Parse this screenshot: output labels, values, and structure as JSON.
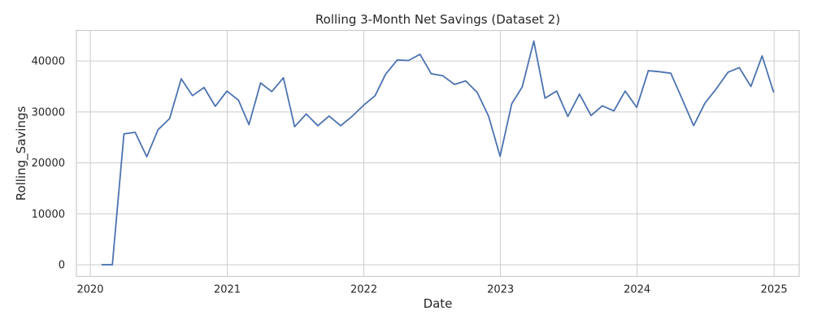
{
  "chart_data": {
    "type": "line",
    "title": "Rolling 3-Month Net Savings (Dataset 2)",
    "xlabel": "Date",
    "ylabel": "Rolling_Savings",
    "xlim": [
      "2019-11-25",
      "2025-03-09"
    ],
    "ylim": [
      -2300,
      46000
    ],
    "x_ticks": [
      {
        "value": "2020-01-01",
        "label": "2020"
      },
      {
        "value": "2021-01-01",
        "label": "2021"
      },
      {
        "value": "2022-01-01",
        "label": "2022"
      },
      {
        "value": "2023-01-01",
        "label": "2023"
      },
      {
        "value": "2024-01-01",
        "label": "2024"
      },
      {
        "value": "2025-01-01",
        "label": "2025"
      }
    ],
    "y_ticks": [
      {
        "value": 0,
        "label": "0"
      },
      {
        "value": 10000,
        "label": "10000"
      },
      {
        "value": 20000,
        "label": "20000"
      },
      {
        "value": 30000,
        "label": "30000"
      },
      {
        "value": 40000,
        "label": "40000"
      }
    ],
    "grid": true,
    "legend": "none",
    "series": [
      {
        "color": "#4c72b0",
        "x": [
          "2020-01-31",
          "2020-02-29",
          "2020-03-31",
          "2020-04-30",
          "2020-05-31",
          "2020-06-30",
          "2020-07-31",
          "2020-08-31",
          "2020-09-30",
          "2020-10-31",
          "2020-11-30",
          "2020-12-31",
          "2021-01-31",
          "2021-02-28",
          "2021-03-31",
          "2021-04-30",
          "2021-05-31",
          "2021-06-30",
          "2021-07-31",
          "2021-08-31",
          "2021-09-30",
          "2021-10-31",
          "2021-11-30",
          "2021-12-31",
          "2022-01-31",
          "2022-02-28",
          "2022-03-31",
          "2022-04-30",
          "2022-05-31",
          "2022-06-30",
          "2022-07-31",
          "2022-08-31",
          "2022-09-30",
          "2022-10-31",
          "2022-11-30",
          "2022-12-31",
          "2023-01-31",
          "2023-02-28",
          "2023-03-31",
          "2023-04-30",
          "2023-05-31",
          "2023-06-30",
          "2023-07-31",
          "2023-08-31",
          "2023-09-30",
          "2023-10-31",
          "2023-11-30",
          "2023-12-31",
          "2024-01-31",
          "2024-02-29",
          "2024-03-31",
          "2024-04-30",
          "2024-05-31",
          "2024-06-30",
          "2024-07-31",
          "2024-08-31",
          "2024-09-30",
          "2024-10-31",
          "2024-11-30",
          "2024-12-31"
        ],
        "y": [
          0,
          0,
          25700,
          26000,
          21200,
          26500,
          28700,
          36500,
          33200,
          34800,
          31100,
          34100,
          32300,
          27500,
          35700,
          34000,
          36700,
          27100,
          29600,
          27300,
          29200,
          27300,
          29100,
          31300,
          33200,
          37400,
          40200,
          40100,
          41300,
          37500,
          37100,
          35400,
          36100,
          33800,
          29200,
          21300,
          31600,
          34900,
          43900,
          32700,
          34100,
          29100,
          33500,
          29300,
          31200,
          30200,
          34100,
          30900,
          38100,
          37900,
          37600,
          32600,
          27300,
          31700,
          34600,
          37800,
          38700,
          35000,
          41000,
          33800
        ]
      }
    ]
  }
}
